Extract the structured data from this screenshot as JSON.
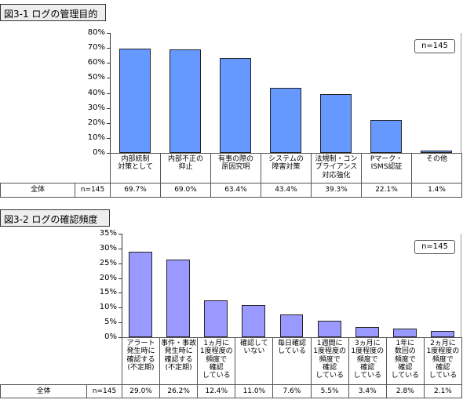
{
  "chart_data": [
    {
      "type": "bar",
      "title": "図3-1 ログの管理目的",
      "categories": [
        "内部統制\n対策として",
        "内部不正の\n抑止",
        "有事の際の\n原因究明",
        "システムの\n障害対策",
        "法規制・コン\nプライアンス\n対応強化",
        "Pマーク・\nISMS認証",
        "その他"
      ],
      "values": [
        69.7,
        69.0,
        63.4,
        43.4,
        39.3,
        22.1,
        1.4
      ],
      "value_labels": [
        "69.7%",
        "69.0%",
        "63.4%",
        "43.4%",
        "39.3%",
        "22.1%",
        "1.4%"
      ],
      "color": "#6699ff",
      "ylim": [
        0,
        80
      ],
      "yticks": [
        {
          "value": 0,
          "label": "0%"
        },
        {
          "value": 10,
          "label": "10%"
        },
        {
          "value": 20,
          "label": "20%"
        },
        {
          "value": 30,
          "label": "30%"
        },
        {
          "value": 40,
          "label": "40%"
        },
        {
          "value": 50,
          "label": "50%"
        },
        {
          "value": 60,
          "label": "60%"
        },
        {
          "value": 70,
          "label": "70%"
        },
        {
          "value": 80,
          "label": "80%"
        }
      ],
      "grid": false,
      "sample_label": "n=145",
      "row_label": "全体",
      "row_n": "n=145"
    },
    {
      "type": "bar",
      "title": "図3-2 ログの確認頻度",
      "categories": [
        "アラート\n発生時に\n確認する\n(不定期)",
        "事件・事故\n発生時に\n確認する\n(不定期)",
        "1ヵ月に\n1度程度の\n頻度で\n確認\nしている",
        "確認して\nいない",
        "毎日確認\nしている",
        "1週間に\n1度程度の\n頻度で\n確認\nしている",
        "3ヵ月に\n1度程度の\n頻度で\n確認\nしている",
        "1年に\n数回の\n頻度で\n確認\nしている",
        "2ヵ月に\n1度程度の\n頻度で\n確認\nしている"
      ],
      "values": [
        29.0,
        26.2,
        12.4,
        11.0,
        7.6,
        5.5,
        3.4,
        2.8,
        2.1
      ],
      "value_labels": [
        "29.0%",
        "26.2%",
        "12.4%",
        "11.0%",
        "7.6%",
        "5.5%",
        "3.4%",
        "2.8%",
        "2.1%"
      ],
      "color": "#9999ff",
      "ylim": [
        0,
        35
      ],
      "yticks": [
        {
          "value": 0,
          "label": "0%"
        },
        {
          "value": 5,
          "label": "5%"
        },
        {
          "value": 10,
          "label": "10%"
        },
        {
          "value": 15,
          "label": "15%"
        },
        {
          "value": 20,
          "label": "20%"
        },
        {
          "value": 25,
          "label": "25%"
        },
        {
          "value": 30,
          "label": "30%"
        },
        {
          "value": 35,
          "label": "35%"
        }
      ],
      "grid": false,
      "sample_label": "n=145",
      "row_label": "全体",
      "row_n": "n=145"
    }
  ]
}
